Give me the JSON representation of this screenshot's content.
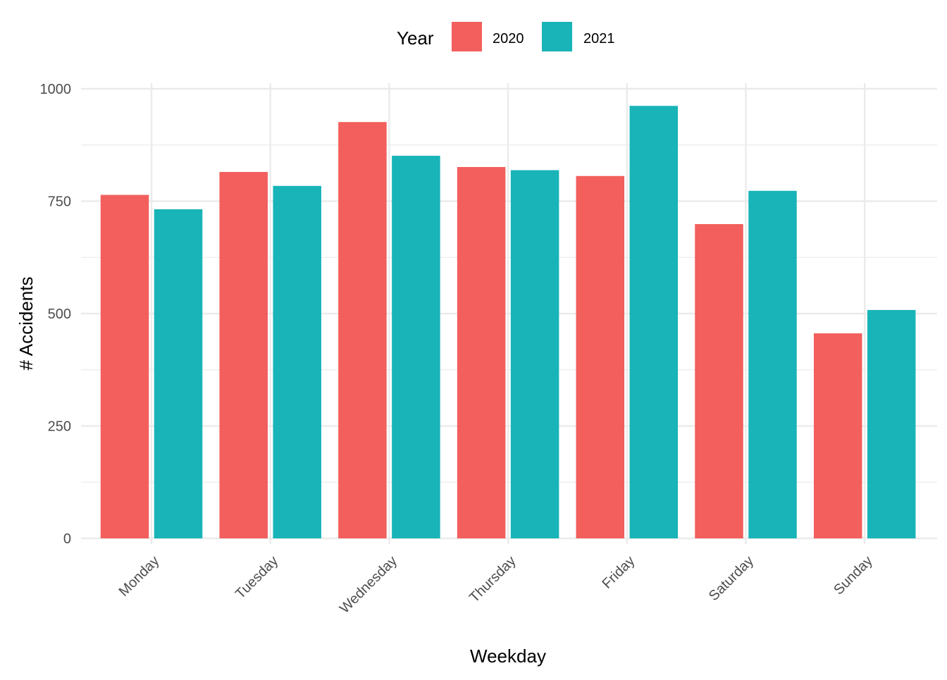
{
  "chart_data": {
    "type": "bar",
    "categories": [
      "Monday",
      "Tuesday",
      "Wednesday",
      "Thursday",
      "Friday",
      "Saturday",
      "Sunday"
    ],
    "series": [
      {
        "name": "2020",
        "color": "#F25F5C",
        "values": [
          764,
          815,
          926,
          826,
          806,
          699,
          456
        ]
      },
      {
        "name": "2021",
        "color": "#18B4B8",
        "values": [
          732,
          784,
          851,
          819,
          962,
          773,
          508
        ]
      }
    ],
    "xlabel": "Weekday",
    "ylabel": "# Accidents",
    "ylim": [
      0,
      1000
    ],
    "yticks": [
      0,
      250,
      500,
      750,
      1000
    ],
    "legend_title": "Year",
    "legend_position": "top",
    "grid": true
  }
}
